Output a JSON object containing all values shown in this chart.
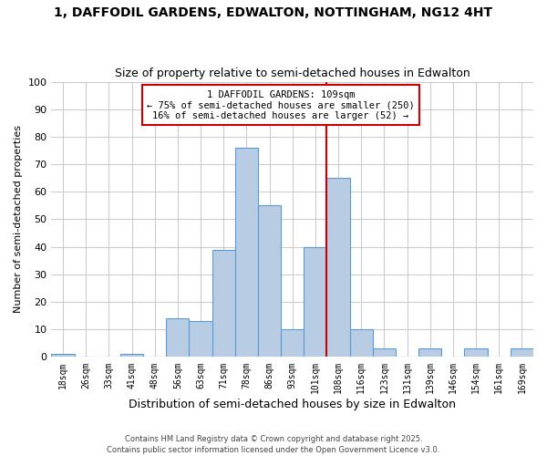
{
  "title_line1": "1, DAFFODIL GARDENS, EDWALTON, NOTTINGHAM, NG12 4HT",
  "title_line2": "Size of property relative to semi-detached houses in Edwalton",
  "xlabel": "Distribution of semi-detached houses by size in Edwalton",
  "ylabel": "Number of semi-detached properties",
  "bin_labels": [
    "18sqm",
    "26sqm",
    "33sqm",
    "41sqm",
    "48sqm",
    "56sqm",
    "63sqm",
    "71sqm",
    "78sqm",
    "86sqm",
    "93sqm",
    "101sqm",
    "108sqm",
    "116sqm",
    "123sqm",
    "131sqm",
    "139sqm",
    "146sqm",
    "154sqm",
    "161sqm",
    "169sqm"
  ],
  "bin_values": [
    1,
    0,
    0,
    1,
    0,
    14,
    13,
    39,
    76,
    55,
    10,
    40,
    65,
    10,
    3,
    0,
    3,
    0,
    3,
    0,
    3
  ],
  "bar_color": "#b8cce4",
  "bar_edge_color": "#5b9bd5",
  "highlight_index": 12,
  "highlight_line_color": "#cc0000",
  "annotation_text": "1 DAFFODIL GARDENS: 109sqm\n← 75% of semi-detached houses are smaller (250)\n16% of semi-detached houses are larger (52) →",
  "annotation_box_color": "#ffffff",
  "annotation_box_edge": "#cc0000",
  "ylim": [
    0,
    100
  ],
  "yticks": [
    0,
    10,
    20,
    30,
    40,
    50,
    60,
    70,
    80,
    90,
    100
  ],
  "footer_line1": "Contains HM Land Registry data © Crown copyright and database right 2025.",
  "footer_line2": "Contains public sector information licensed under the Open Government Licence v3.0.",
  "bg_color": "#ffffff",
  "grid_color": "#cccccc"
}
